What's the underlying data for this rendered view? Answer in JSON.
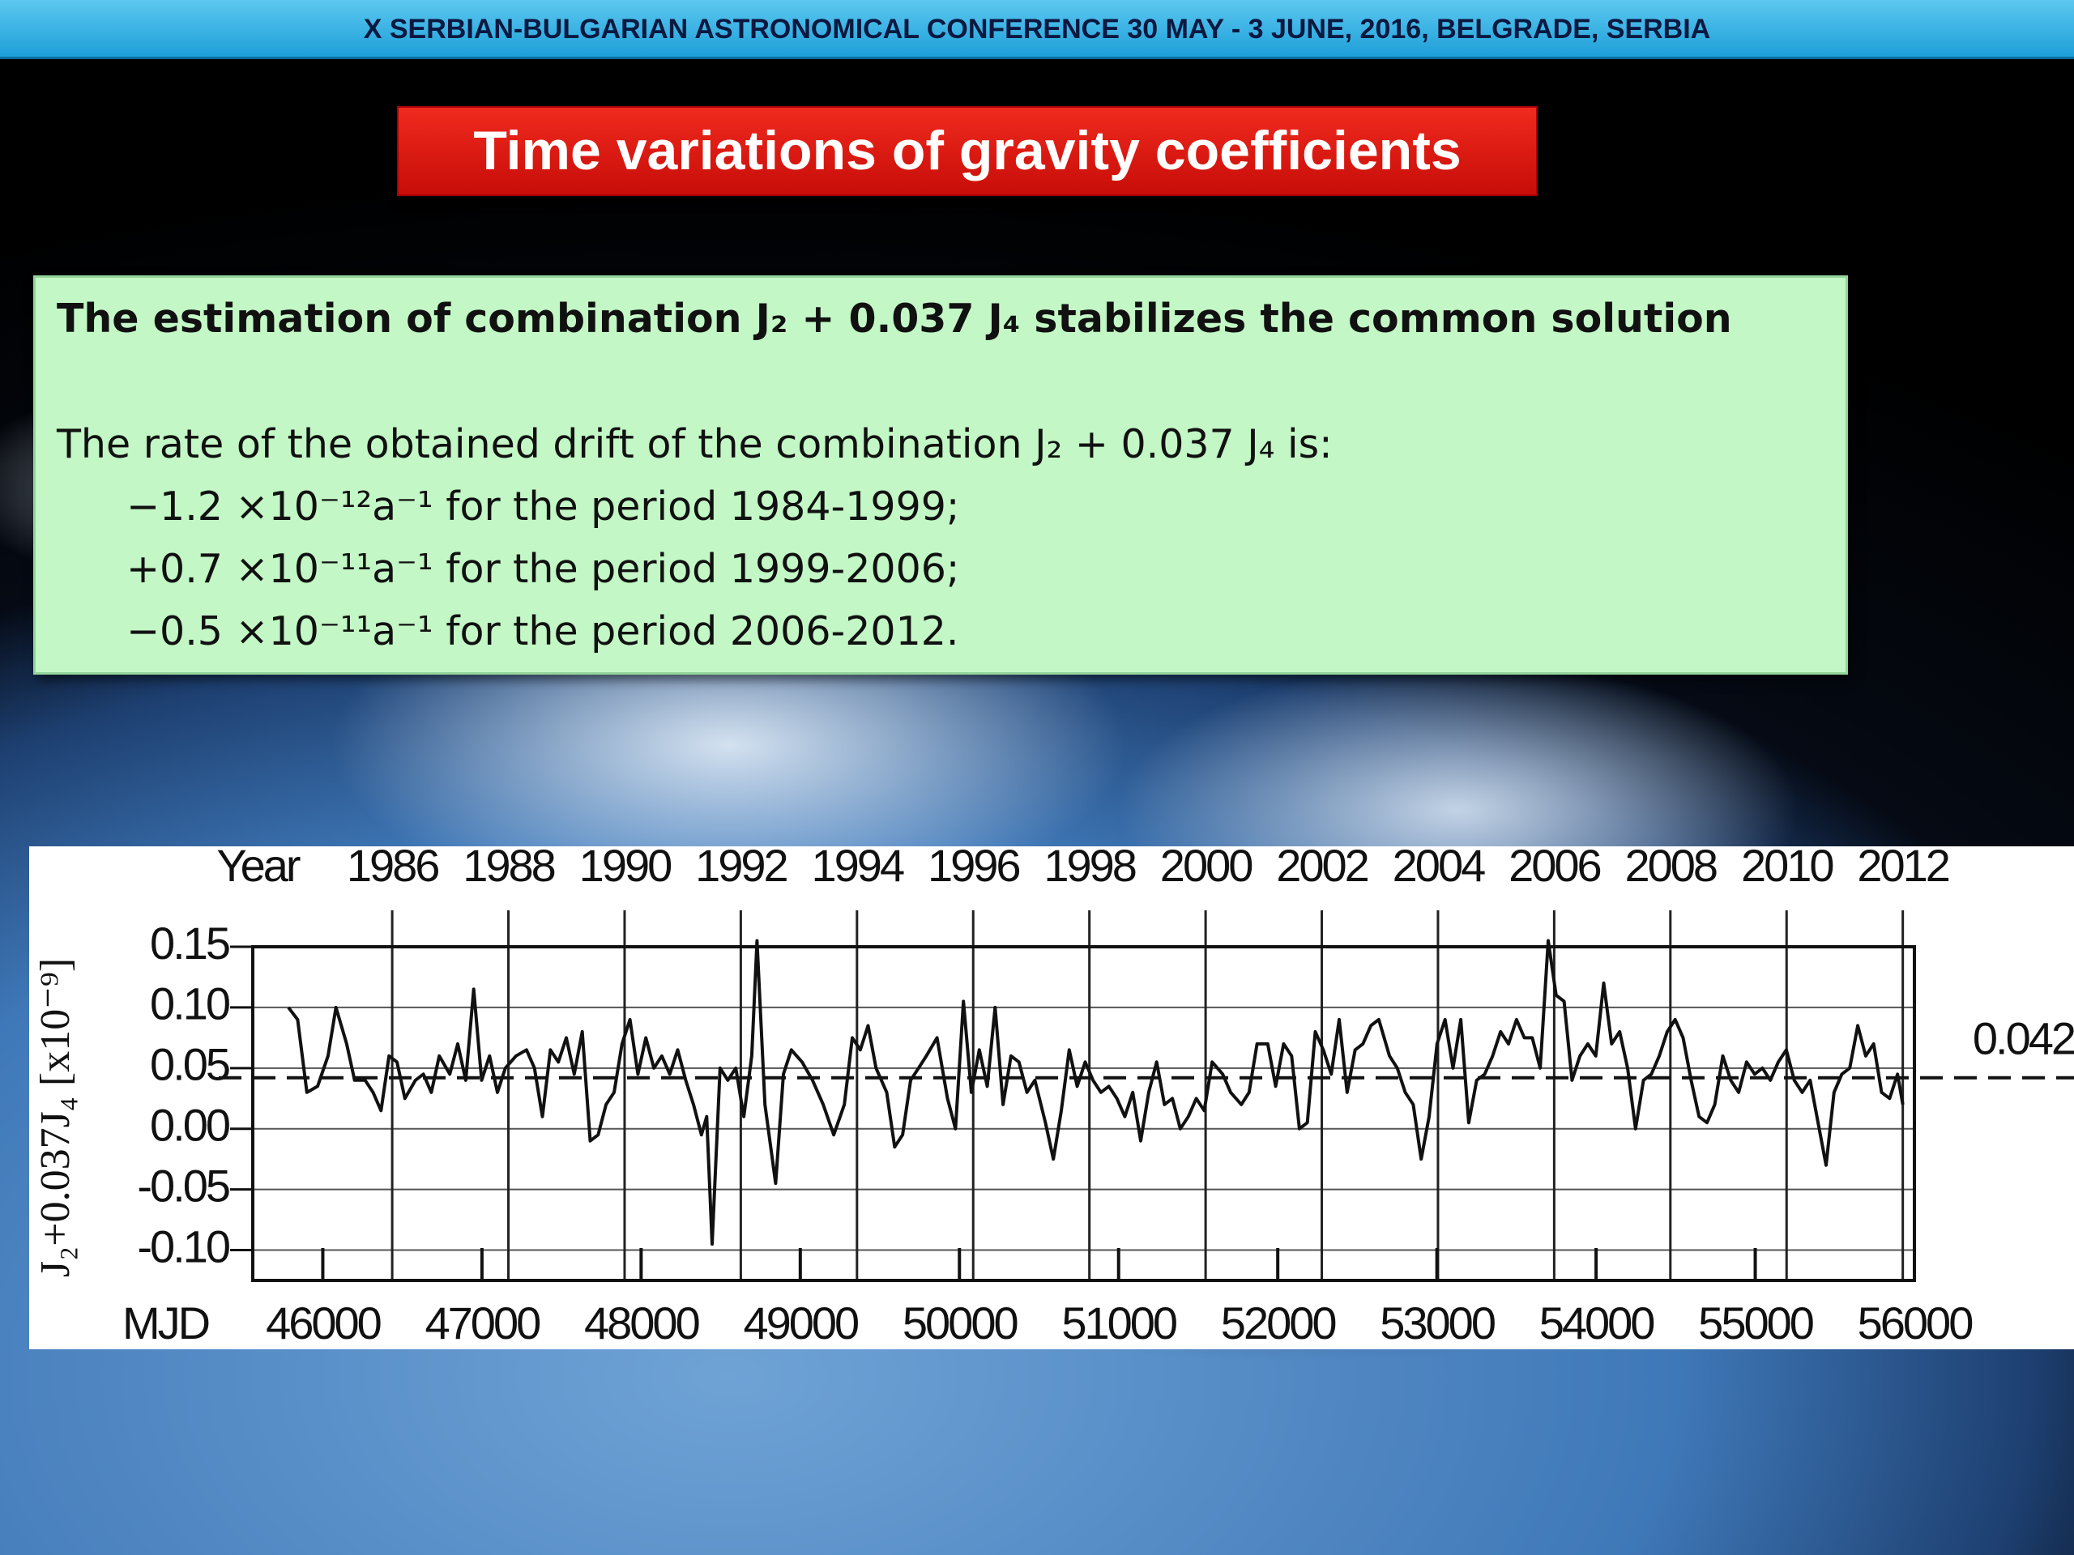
{
  "header": "X SERBIAN-BULGARIAN ASTRONOMICAL CONFERENCE 30 MAY - 3 JUNE, 2016, BELGRADE, SERBIA",
  "title": "Time variations of gravity coefficients",
  "text_box": {
    "heading": "The estimation of combination J₂ + 0.037 J₄ stabilizes the common solution",
    "lines": [
      "The rate of the obtained drift of the combination J₂ + 0.037 J₄ is:",
      "−1.2 ×10⁻¹²a⁻¹ for the period 1984-1999;",
      "+0.7 ×10⁻¹¹a⁻¹ for the period 1999-2006;",
      "−0.5 ×10⁻¹¹a⁻¹ for the period 2006-2012."
    ]
  },
  "chart_data": {
    "type": "line",
    "color": "#111111",
    "xlabel": "MJD",
    "x2label": "Year",
    "ylabel": "J₂+0.037J₄ [x10⁻⁹]",
    "xlim": [
      45560,
      56000
    ],
    "xticks": [
      46000,
      47000,
      48000,
      49000,
      50000,
      51000,
      52000,
      53000,
      54000,
      55000,
      56000
    ],
    "x2lim": [
      1983.6,
      2012.2
    ],
    "x2ticks": [
      1986,
      1988,
      1990,
      1992,
      1994,
      1996,
      1998,
      2000,
      2002,
      2004,
      2006,
      2008,
      2010,
      2012
    ],
    "ylim": [
      -0.125,
      0.15
    ],
    "yticks": [
      0.15,
      {
        "value": 0.1,
        "label": "0.10"
      },
      0.05,
      {
        "value": 0,
        "label": "0.00"
      },
      -0.05,
      {
        "value": -0.1,
        "label": "-0.10"
      }
    ],
    "grid": true,
    "reference_line": 0.042,
    "x": [
      45784,
      45842,
      45900,
      45967,
      46033,
      46083,
      46150,
      46200,
      46266,
      46316,
      46366,
      46416,
      46466,
      46516,
      46582,
      46632,
      46682,
      46732,
      46798,
      46848,
      46898,
      46948,
      46998,
      47048,
      47097,
      47147,
      47214,
      47280,
      47330,
      47380,
      47430,
      47480,
      47530,
      47580,
      47630,
      47680,
      47730,
      47780,
      47830,
      47880,
      47930,
      47980,
      48030,
      48080,
      48130,
      48180,
      48230,
      48280,
      48329,
      48379,
      48412,
      48446,
      48496,
      48545,
      48595,
      48645,
      48695,
      48728,
      48778,
      48845,
      48894,
      48944,
      49011,
      49077,
      49144,
      49210,
      49277,
      49327,
      49377,
      49426,
      49476,
      49543,
      49593,
      49643,
      49693,
      49743,
      49792,
      49859,
      49925,
      49975,
      50025,
      50075,
      50125,
      50175,
      50224,
      50274,
      50324,
      50374,
      50424,
      50474,
      50540,
      50590,
      50640,
      50690,
      50740,
      50790,
      50839,
      50889,
      50939,
      50989,
      51039,
      51089,
      51139,
      51189,
      51239,
      51288,
      51338,
      51388,
      51438,
      51488,
      51538,
      51588,
      51654,
      51704,
      51771,
      51820,
      51870,
      51937,
      51987,
      52037,
      52087,
      52136,
      52186,
      52236,
      52286,
      52336,
      52386,
      52436,
      52486,
      52535,
      52585,
      52635,
      52702,
      52751,
      52801,
      52851,
      52901,
      52951,
      53001,
      53051,
      53101,
      53150,
      53200,
      53250,
      53300,
      53350,
      53400,
      53450,
      53500,
      53549,
      53599,
      53649,
      53699,
      53749,
      53799,
      53849,
      53899,
      53948,
      53998,
      54048,
      54098,
      54148,
      54198,
      54248,
      54298,
      54347,
      54397,
      54447,
      54497,
      54547,
      54597,
      54647,
      54697,
      54746,
      54796,
      54846,
      54896,
      54946,
      54996,
      55045,
      55095,
      55145,
      55195,
      55245,
      55295,
      55345,
      55395,
      55445,
      55495,
      55544,
      55594,
      55644,
      55694,
      55744,
      55794,
      55844,
      55894,
      55927
    ],
    "values": [
      0.1,
      0.09,
      0.03,
      0.035,
      0.06,
      0.1,
      0.07,
      0.04,
      0.04,
      0.03,
      0.015,
      0.06,
      0.055,
      0.025,
      0.04,
      0.045,
      0.03,
      0.06,
      0.045,
      0.07,
      0.04,
      0.115,
      0.04,
      0.06,
      0.03,
      0.05,
      0.06,
      0.065,
      0.05,
      0.01,
      0.065,
      0.055,
      0.075,
      0.045,
      0.08,
      -0.01,
      -0.005,
      0.02,
      0.03,
      0.07,
      0.09,
      0.045,
      0.075,
      0.05,
      0.06,
      0.045,
      0.065,
      0.04,
      0.02,
      -0.005,
      0.01,
      -0.095,
      0.05,
      0.04,
      0.05,
      0.01,
      0.06,
      0.155,
      0.02,
      -0.045,
      0.045,
      0.065,
      0.055,
      0.04,
      0.02,
      -0.005,
      0.02,
      0.075,
      0.065,
      0.085,
      0.05,
      0.03,
      -0.015,
      -0.005,
      0.04,
      0.05,
      0.06,
      0.075,
      0.025,
      0.0,
      0.105,
      0.03,
      0.065,
      0.035,
      0.1,
      0.02,
      0.06,
      0.055,
      0.03,
      0.04,
      0.005,
      -0.025,
      0.015,
      0.065,
      0.035,
      0.055,
      0.04,
      0.03,
      0.035,
      0.025,
      0.01,
      0.03,
      -0.01,
      0.03,
      0.055,
      0.02,
      0.025,
      0.0,
      0.01,
      0.025,
      0.015,
      0.055,
      0.045,
      0.03,
      0.02,
      0.03,
      0.07,
      0.07,
      0.035,
      0.07,
      0.06,
      0.0,
      0.005,
      0.08,
      0.065,
      0.045,
      0.09,
      0.03,
      0.065,
      0.07,
      0.085,
      0.09,
      0.06,
      0.05,
      0.03,
      0.02,
      -0.025,
      0.01,
      0.07,
      0.09,
      0.05,
      0.09,
      0.005,
      0.04,
      0.045,
      0.06,
      0.08,
      0.07,
      0.09,
      0.075,
      0.075,
      0.05,
      0.155,
      0.11,
      0.105,
      0.04,
      0.06,
      0.07,
      0.06,
      0.12,
      0.07,
      0.08,
      0.05,
      0.0,
      0.04,
      0.045,
      0.06,
      0.08,
      0.09,
      0.075,
      0.04,
      0.01,
      0.005,
      0.02,
      0.06,
      0.04,
      0.03,
      0.055,
      0.045,
      0.05,
      0.04,
      0.055,
      0.065,
      0.04,
      0.03,
      0.04,
      0.005,
      -0.03,
      0.03,
      0.045,
      0.05,
      0.085,
      0.06,
      0.07,
      0.03,
      0.025,
      0.045,
      0.02
    ]
  }
}
